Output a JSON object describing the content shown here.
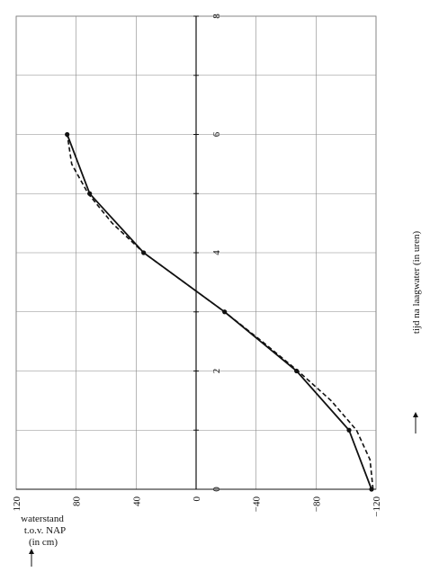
{
  "chart_data": {
    "type": "line",
    "orientation": "rotated-90-clockwise",
    "x_axis": {
      "label": "tijd na laagwater (in uren)",
      "range": [
        0,
        8
      ],
      "ticks": [
        0,
        2,
        4,
        6,
        8
      ],
      "grid_step": 1
    },
    "y_axis": {
      "label_lines": [
        "waterstand",
        "t.o.v. NAP",
        "(in cm)"
      ],
      "range": [
        -120,
        120
      ],
      "ticks": [
        -120,
        -80,
        -40,
        0,
        40,
        80,
        120
      ],
      "tick_labels": [
        "−120",
        "−80",
        "−40",
        "0",
        "40",
        "80",
        "120"
      ],
      "grid_step": 40
    },
    "grid": true,
    "series": [
      {
        "style": "solid",
        "markers": true,
        "points": [
          {
            "x": 0,
            "y": -117
          },
          {
            "x": 1,
            "y": -102
          },
          {
            "x": 2,
            "y": -67
          },
          {
            "x": 3,
            "y": -19
          },
          {
            "x": 4,
            "y": 35
          },
          {
            "x": 5,
            "y": 71
          },
          {
            "x": 6,
            "y": 86
          }
        ]
      },
      {
        "style": "dashed",
        "markers": false,
        "points": [
          {
            "x": 0,
            "y": -118
          },
          {
            "x": 0.5,
            "y": -116
          },
          {
            "x": 1,
            "y": -107
          },
          {
            "x": 1.5,
            "y": -90
          },
          {
            "x": 2,
            "y": -68
          },
          {
            "x": 2.5,
            "y": -44
          },
          {
            "x": 3,
            "y": -19
          },
          {
            "x": 3.5,
            "y": 8
          },
          {
            "x": 4,
            "y": 35
          },
          {
            "x": 4.5,
            "y": 56
          },
          {
            "x": 5,
            "y": 72
          },
          {
            "x": 5.5,
            "y": 83
          },
          {
            "x": 6,
            "y": 86
          }
        ]
      }
    ]
  }
}
